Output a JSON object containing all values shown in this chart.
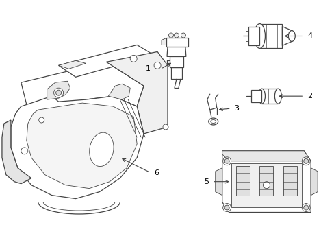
{
  "background_color": "#ffffff",
  "line_color": "#444444",
  "label_color": "#000000",
  "fig_width": 4.89,
  "fig_height": 3.6,
  "dpi": 100
}
